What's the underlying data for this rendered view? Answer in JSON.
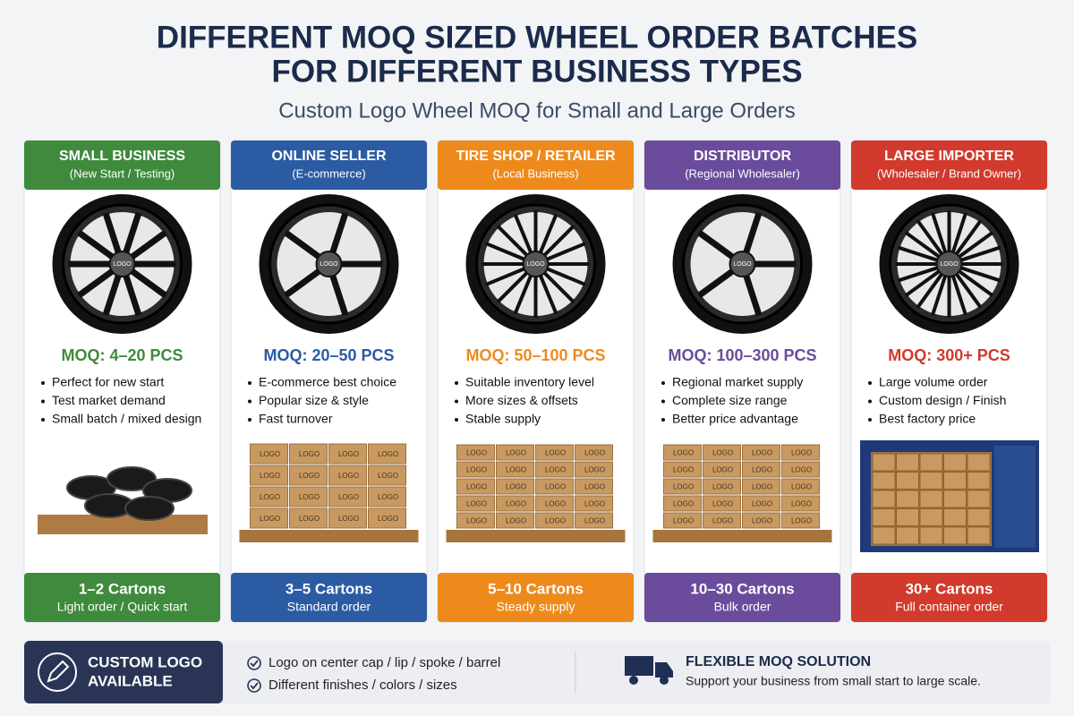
{
  "header": {
    "title_lines": [
      "DIFFERENT MOQ SIZED WHEEL ORDER BATCHES",
      "FOR DIFFERENT BUSINESS TYPES"
    ],
    "subtitle": "Custom Logo Wheel MOQ for Small and Large Orders"
  },
  "image_label": "LOGO",
  "columns": [
    {
      "title": "SMALL BUSINESS",
      "subtitle": "(New Start / Testing)",
      "color": "#3f8a3c",
      "moq": "MOQ: 4–20 PCS",
      "bullets": [
        "Perfect for new start",
        "Test market demand",
        "Small batch / mixed design"
      ],
      "cartons": "1–2 Cartons",
      "note": "Light order / Quick start"
    },
    {
      "title": "ONLINE SELLER",
      "subtitle": "(E-commerce)",
      "color": "#2b5ba3",
      "moq": "MOQ: 20–50 PCS",
      "bullets": [
        "E-commerce best choice",
        "Popular size & style",
        "Fast turnover"
      ],
      "cartons": "3–5 Cartons",
      "note": "Standard order"
    },
    {
      "title": "TIRE SHOP / RETAILER",
      "subtitle": "(Local Business)",
      "color": "#ee8a1c",
      "moq": "MOQ: 50–100 PCS",
      "bullets": [
        "Suitable inventory level",
        "More sizes & offsets",
        "Stable supply"
      ],
      "cartons": "5–10 Cartons",
      "note": "Steady supply"
    },
    {
      "title": "DISTRIBUTOR",
      "subtitle": "(Regional Wholesaler)",
      "color": "#6b4c9c",
      "moq": "MOQ: 100–300 PCS",
      "bullets": [
        "Regional market supply",
        "Complete size range",
        "Better price advantage"
      ],
      "cartons": "10–30 Cartons",
      "note": "Bulk order"
    },
    {
      "title": "LARGE IMPORTER",
      "subtitle": "(Wholesaler / Brand Owner)",
      "color": "#d13a2c",
      "moq": "MOQ: 300+ PCS",
      "bullets": [
        "Large volume order",
        "Custom design / Finish",
        "Best factory price"
      ],
      "cartons": "30+ Cartons",
      "note": "Full container order"
    }
  ],
  "footer": {
    "badge_lines": [
      "CUSTOM LOGO",
      "AVAILABLE"
    ],
    "features": [
      "Logo on center cap / lip / spoke / barrel",
      "Different finishes / colors / sizes"
    ],
    "solution_title": "FLEXIBLE MOQ SOLUTION",
    "solution_text": "Support your business from small start to large scale."
  }
}
